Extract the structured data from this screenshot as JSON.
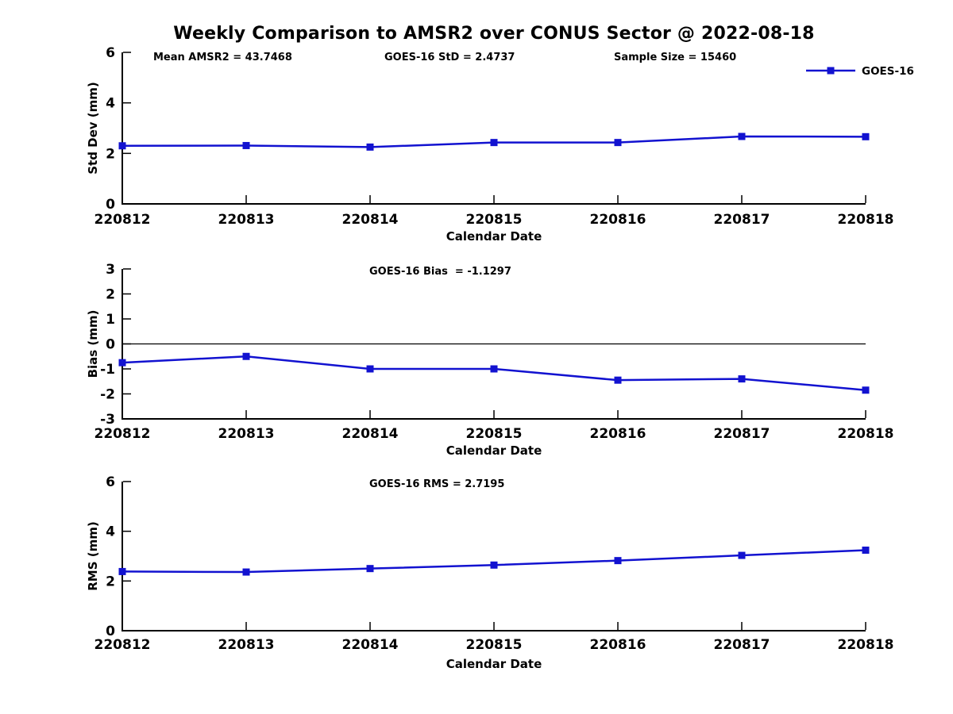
{
  "title": "Weekly Comparison to AMSR2 over CONUS Sector @ 2022-08-18",
  "line_color": "#1212d0",
  "text_color": "#000000",
  "chart_data": [
    {
      "type": "line",
      "name": "std-dev",
      "categories": [
        "220812",
        "220813",
        "220814",
        "220815",
        "220816",
        "220817",
        "220818"
      ],
      "series": [
        {
          "name": "GOES-16",
          "values": [
            2.3,
            2.31,
            2.25,
            2.43,
            2.43,
            2.67,
            2.66
          ]
        }
      ],
      "xlabel": "Calendar Date",
      "ylabel": "Std Dev (mm)",
      "ylim": [
        0,
        6
      ],
      "yticks": [
        0,
        2,
        4,
        6
      ],
      "grid": false,
      "zero_line": false,
      "annotations": [
        "Mean AMSR2 = 43.7468",
        "GOES-16 StD = 2.4737",
        "Sample Size = 15460"
      ],
      "legend": {
        "visible": true,
        "position": "top-right",
        "label": "GOES-16"
      }
    },
    {
      "type": "line",
      "name": "bias",
      "categories": [
        "220812",
        "220813",
        "220814",
        "220815",
        "220816",
        "220817",
        "220818"
      ],
      "series": [
        {
          "name": "GOES-16",
          "values": [
            -0.75,
            -0.5,
            -1.0,
            -1.0,
            -1.45,
            -1.4,
            -1.85
          ]
        }
      ],
      "xlabel": "Calendar Date",
      "ylabel": "Bias (mm)",
      "ylim": [
        -3,
        3
      ],
      "yticks": [
        -3,
        -2,
        -1,
        0,
        1,
        2,
        3
      ],
      "grid": false,
      "zero_line": true,
      "annotations": [
        "GOES-16 Bias  = -1.1297"
      ],
      "legend": {
        "visible": false
      }
    },
    {
      "type": "line",
      "name": "rms",
      "categories": [
        "220812",
        "220813",
        "220814",
        "220815",
        "220816",
        "220817",
        "220818"
      ],
      "series": [
        {
          "name": "GOES-16",
          "values": [
            2.38,
            2.36,
            2.5,
            2.64,
            2.82,
            3.03,
            3.24
          ]
        }
      ],
      "xlabel": "Calendar Date",
      "ylabel": "RMS (mm)",
      "ylim": [
        0,
        6
      ],
      "yticks": [
        0,
        2,
        4,
        6
      ],
      "grid": false,
      "zero_line": false,
      "annotations": [
        "GOES-16 RMS = 2.7195"
      ],
      "legend": {
        "visible": false
      }
    }
  ]
}
